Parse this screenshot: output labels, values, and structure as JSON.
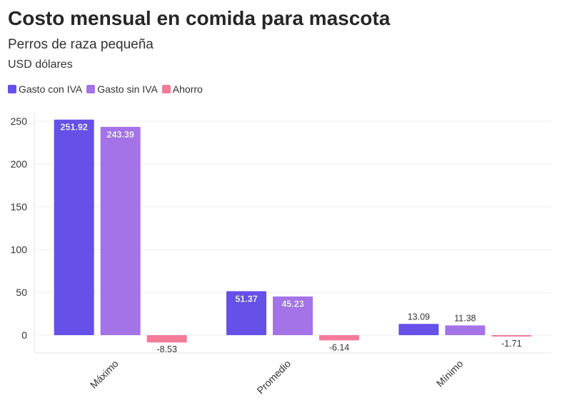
{
  "chart_data": {
    "type": "bar",
    "title": "Costo mensual en comida para mascota",
    "subtitle": "Perros de raza pequeña",
    "unit": "USD dólares",
    "categories": [
      "Máximo",
      "Promedio",
      "Mínimo"
    ],
    "series": [
      {
        "name": "Gasto con IVA",
        "color": "#6550E8",
        "values": [
          251.92,
          51.37,
          13.09
        ]
      },
      {
        "name": "Gasto sin IVA",
        "color": "#A473E8",
        "values": [
          243.39,
          45.23,
          11.38
        ]
      },
      {
        "name": "Ahorro",
        "color": "#F47A9A",
        "values": [
          -8.53,
          -6.14,
          -1.71
        ]
      }
    ],
    "value_labels": [
      [
        "251.92",
        "51.37",
        "13.09"
      ],
      [
        "243.39",
        "45.23",
        "11.38"
      ],
      [
        "-8.53",
        "-6.14",
        "-1.71"
      ]
    ],
    "yticks": [
      0,
      50,
      100,
      150,
      200,
      250
    ],
    "ylim": [
      -20,
      260
    ],
    "grid": true,
    "legend_position": "top-left"
  }
}
